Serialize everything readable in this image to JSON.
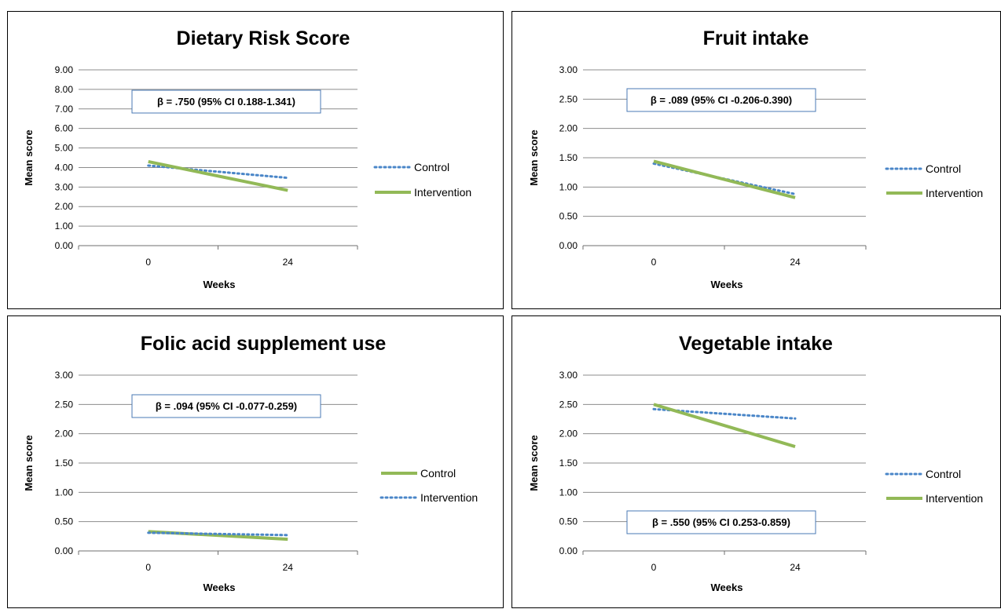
{
  "colors": {
    "control_dotted": "#4a86c8",
    "intervention_solid": "#92b957",
    "grid": "#8c8c8c"
  },
  "chart_data": [
    {
      "type": "line",
      "title": "Dietary Risk Score",
      "xlabel": "Weeks",
      "ylabel": "Mean score",
      "categories": [
        "0",
        "24"
      ],
      "ylim": [
        0,
        9
      ],
      "yticks": [
        "0.00",
        "1.00",
        "2.00",
        "3.00",
        "4.00",
        "5.00",
        "6.00",
        "7.00",
        "8.00",
        "9.00"
      ],
      "grid": true,
      "legend": "right",
      "annotation": "β = .750 (95% CI 0.188-1.341)",
      "series": [
        {
          "name": "Control",
          "style": "dotted",
          "values": [
            4.1,
            3.47
          ]
        },
        {
          "name": "Intervention",
          "style": "solid",
          "values": [
            4.3,
            2.83
          ]
        }
      ]
    },
    {
      "type": "line",
      "title": "Fruit intake",
      "xlabel": "Weeks",
      "ylabel": "Mean score",
      "categories": [
        "0",
        "24"
      ],
      "ylim": [
        0,
        3
      ],
      "yticks": [
        "0.00",
        "0.50",
        "1.00",
        "1.50",
        "2.00",
        "2.50",
        "3.00"
      ],
      "grid": true,
      "legend": "right",
      "annotation": "β = .089 (95% CI -0.206-0.390)",
      "series": [
        {
          "name": "Control",
          "style": "dotted",
          "values": [
            1.4,
            0.88
          ]
        },
        {
          "name": "Intervention",
          "style": "solid",
          "values": [
            1.44,
            0.82
          ]
        }
      ]
    },
    {
      "type": "line",
      "title": "Folic acid supplement use",
      "xlabel": "Weeks",
      "ylabel": "Mean score",
      "categories": [
        "0",
        "24"
      ],
      "ylim": [
        0,
        3
      ],
      "yticks": [
        "0.00",
        "0.50",
        "1.00",
        "1.50",
        "2.00",
        "2.50",
        "3.00"
      ],
      "grid": true,
      "legend": "right",
      "annotation": "β = .094 (95% CI -0.077-0.259)",
      "series": [
        {
          "name": "Control",
          "style": "solid",
          "values": [
            0.33,
            0.2
          ]
        },
        {
          "name": "Intervention",
          "style": "dotted",
          "values": [
            0.31,
            0.27
          ]
        }
      ]
    },
    {
      "type": "line",
      "title": "Vegetable intake",
      "xlabel": "Weeks",
      "ylabel": "Mean score",
      "categories": [
        "0",
        "24"
      ],
      "ylim": [
        0,
        3
      ],
      "yticks": [
        "0.00",
        "0.50",
        "1.00",
        "1.50",
        "2.00",
        "2.50",
        "3.00"
      ],
      "grid": true,
      "legend": "right",
      "annotation": "β = .550 (95% CI 0.253-0.859)",
      "series": [
        {
          "name": "Control",
          "style": "dotted",
          "values": [
            2.42,
            2.26
          ]
        },
        {
          "name": "Intervention",
          "style": "solid",
          "values": [
            2.5,
            1.78
          ]
        }
      ]
    }
  ]
}
